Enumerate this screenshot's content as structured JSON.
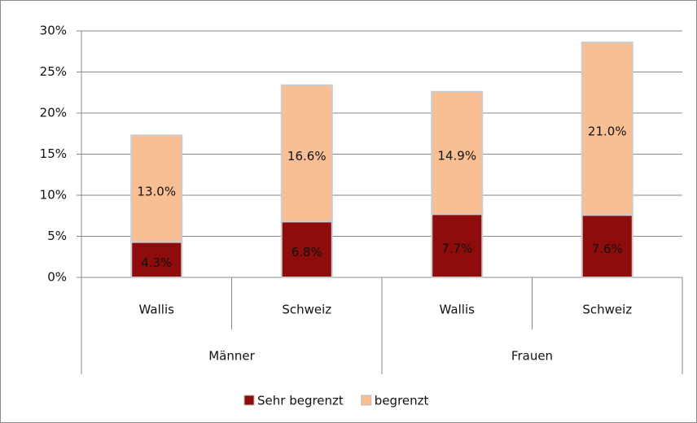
{
  "chart_data": {
    "type": "stacked_bar",
    "categories": [
      "Wallis",
      "Schweiz",
      "Wallis",
      "Schweiz"
    ],
    "category_groups": [
      "Männer",
      "Frauen"
    ],
    "series": [
      {
        "name": "Sehr begrenzt",
        "color": "#8e0c0c",
        "values": [
          4.3,
          6.8,
          7.7,
          7.6
        ],
        "value_labels": [
          "4.3%",
          "6.8%",
          "7.7%",
          "7.6%"
        ]
      },
      {
        "name": "begrenzt",
        "color": "#f9bf94",
        "values": [
          13.0,
          16.6,
          14.9,
          21.0
        ],
        "value_labels": [
          "13.0%",
          "16.6%",
          "14.9%",
          "21.0%"
        ]
      }
    ],
    "ylim": [
      0,
      30
    ],
    "yticks": [
      {
        "value": 0,
        "label": "0%"
      },
      {
        "value": 5,
        "label": "5%"
      },
      {
        "value": 10,
        "label": "10%"
      },
      {
        "value": 15,
        "label": "15%"
      },
      {
        "value": 20,
        "label": "20%"
      },
      {
        "value": 25,
        "label": "25%"
      },
      {
        "value": 30,
        "label": "30%"
      }
    ],
    "grid": true,
    "legend": "bottom"
  }
}
